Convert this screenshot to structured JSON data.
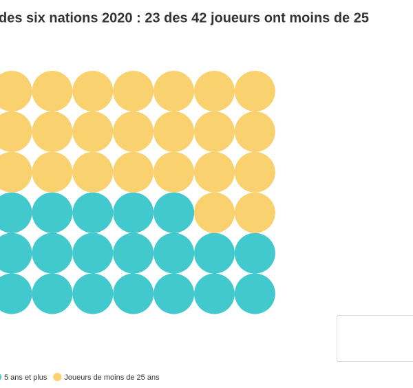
{
  "chart_data": {
    "type": "waffle",
    "title": "des six nations 2020 : 23 des 42 joueurs ont moins de 25",
    "series": [
      {
        "name": "5 ans et plus",
        "color": "#42c9ce",
        "values": 19
      },
      {
        "name": "Joueurs de moins de 25 ans",
        "color": "#f9d16e",
        "values": 23
      }
    ]
  }
}
